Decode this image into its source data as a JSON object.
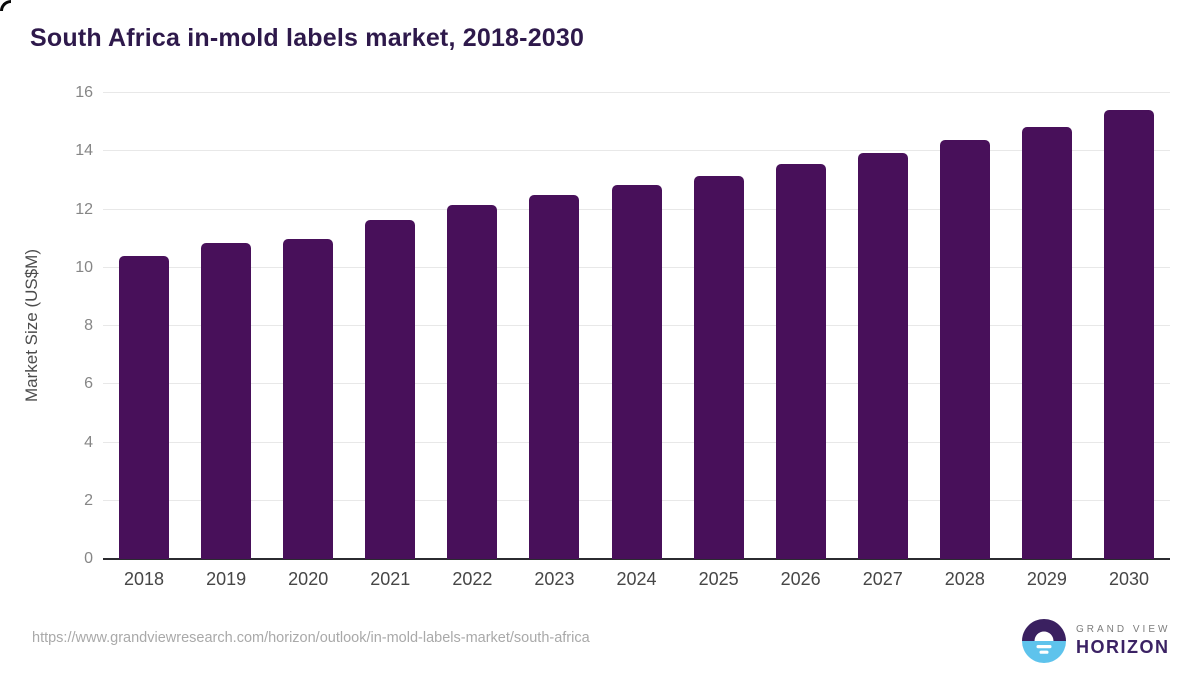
{
  "header": {
    "title": "South Africa in-mold labels market, 2018-2030"
  },
  "chart_data": {
    "type": "bar",
    "title": "South Africa in-mold labels market, 2018-2030",
    "categories": [
      "2018",
      "2019",
      "2020",
      "2021",
      "2022",
      "2023",
      "2024",
      "2025",
      "2026",
      "2027",
      "2028",
      "2029",
      "2030"
    ],
    "values": [
      10.4,
      10.85,
      11.0,
      11.65,
      12.15,
      12.5,
      12.85,
      13.15,
      13.55,
      13.95,
      14.4,
      14.85,
      15.4
    ],
    "xlabel": "",
    "ylabel": "Market Size (US$M)",
    "ylim": [
      0,
      16
    ],
    "ytick_step": 2,
    "grid": true,
    "legend": false,
    "bar_color": "#48105a"
  },
  "footer": {
    "source_url": "https://www.grandviewresearch.com/horizon/outlook/in-mold-labels-market/south-africa",
    "logo": {
      "icon": "horizon-sunrise-icon",
      "line1": "GRAND VIEW",
      "line2": "HORIZON",
      "icon_purple": "#3a2060",
      "icon_blue": "#5ec3ec"
    }
  },
  "colors": {
    "background": "#ffffff",
    "title": "#2e194b",
    "gridline": "#e8e8e8",
    "axis_line": "#2b2b30",
    "y_tick": "#868686",
    "x_tick": "#464646",
    "y_axis_title": "#4c4c4c",
    "source_text": "#a9a9a9"
  }
}
